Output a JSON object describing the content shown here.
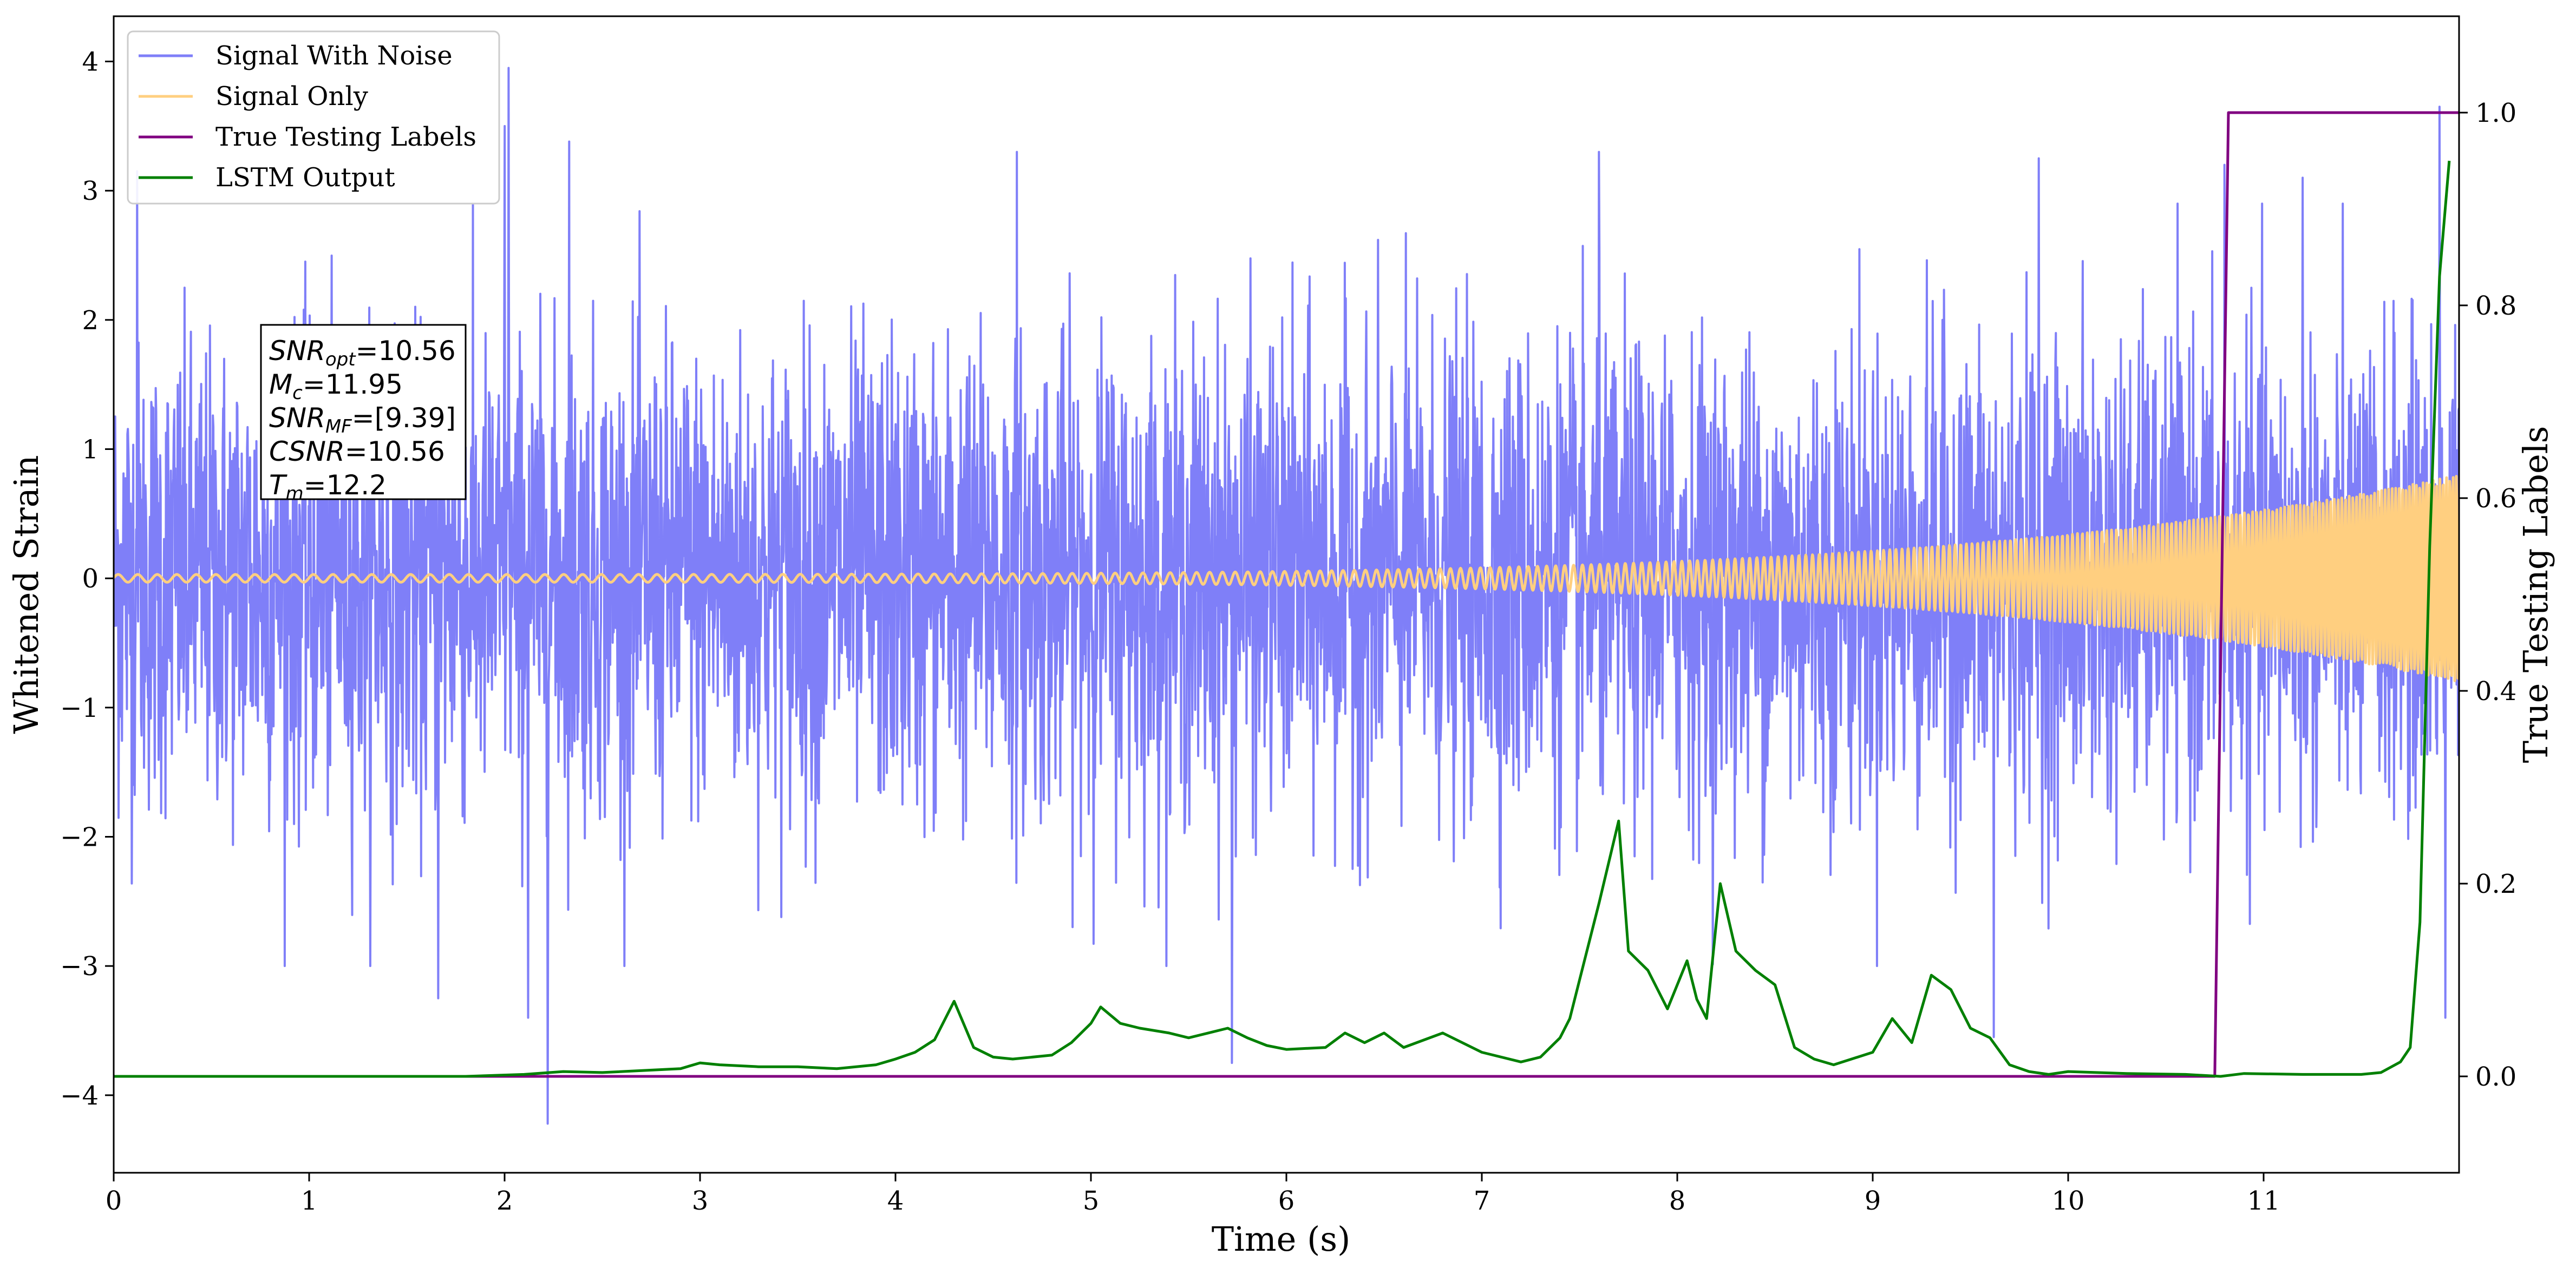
{
  "chart_data": {
    "type": "line",
    "xlabel": "Time (s)",
    "ylabel_left": "Whitened Strain",
    "ylabel_right": "True Testing Labels",
    "xlim": [
      0,
      12
    ],
    "ylim_left": [
      -4.6,
      4.35
    ],
    "ylim_right": [
      -0.1,
      1.1
    ],
    "x_ticks": [
      0,
      1,
      2,
      3,
      4,
      5,
      6,
      7,
      8,
      9,
      10,
      11
    ],
    "y_ticks_left": [
      -4,
      -3,
      -2,
      -1,
      0,
      1,
      2,
      3,
      4
    ],
    "y_ticks_right": [
      0.0,
      0.2,
      0.4,
      0.6,
      0.8,
      1.0
    ],
    "y_tick_labels_left": [
      "−4",
      "−3",
      "−2",
      "−1",
      "0",
      "1",
      "2",
      "3",
      "4"
    ],
    "y_tick_labels_right": [
      "0.0",
      "0.2",
      "0.4",
      "0.6",
      "0.8",
      "1.0"
    ],
    "grid": false,
    "legend_placement": "top-left",
    "series": [
      {
        "name": "Signal With Noise",
        "axis": "left",
        "color": "#7f7ff8",
        "kind": "noise",
        "sigma": 0.9,
        "samples": 4800,
        "spikes": [
          [
            0.12,
            3.15
          ],
          [
            2.0,
            3.5
          ],
          [
            2.02,
            3.95
          ],
          [
            2.22,
            -4.22
          ],
          [
            2.33,
            3.38
          ],
          [
            4.62,
            3.3
          ],
          [
            5.72,
            -3.75
          ],
          [
            7.6,
            3.3
          ],
          [
            9.62,
            -3.55
          ],
          [
            9.85,
            3.25
          ],
          [
            10.8,
            3.2
          ],
          [
            11.2,
            3.1
          ],
          [
            11.9,
            3.65
          ],
          [
            11.93,
            -3.4
          ],
          [
            1.66,
            -3.25
          ],
          [
            2.12,
            -3.4
          ]
        ]
      },
      {
        "name": "Signal Only",
        "axis": "left",
        "color": "#ffcf80",
        "kind": "chirp",
        "amp_start": 0.03,
        "amp_end": 0.8,
        "f_start": 10,
        "f_end": 60
      },
      {
        "name": "True Testing Labels",
        "axis": "right",
        "color": "#800080",
        "x": [
          0,
          10.75,
          10.82,
          12
        ],
        "y": [
          0,
          0,
          1,
          1
        ]
      },
      {
        "name": "LSTM Output",
        "axis": "right",
        "color": "#008000",
        "x": [
          0,
          1.8,
          2.1,
          2.3,
          2.5,
          2.9,
          3.0,
          3.1,
          3.3,
          3.5,
          3.7,
          3.9,
          4.0,
          4.1,
          4.2,
          4.3,
          4.4,
          4.5,
          4.6,
          4.8,
          4.9,
          5.0,
          5.05,
          5.15,
          5.25,
          5.4,
          5.5,
          5.6,
          5.7,
          5.8,
          5.9,
          6.0,
          6.2,
          6.3,
          6.4,
          6.5,
          6.6,
          6.8,
          7.0,
          7.2,
          7.3,
          7.4,
          7.45,
          7.5,
          7.6,
          7.7,
          7.75,
          7.85,
          7.95,
          8.05,
          8.1,
          8.15,
          8.22,
          8.3,
          8.4,
          8.5,
          8.6,
          8.7,
          8.8,
          9.0,
          9.1,
          9.2,
          9.3,
          9.4,
          9.5,
          9.6,
          9.7,
          9.8,
          9.9,
          10.0,
          10.3,
          10.6,
          10.78,
          10.9,
          11.2,
          11.5,
          11.6,
          11.7,
          11.75,
          11.8,
          11.85,
          11.9,
          11.95
        ],
        "y": [
          0.0,
          0.0,
          0.002,
          0.005,
          0.004,
          0.008,
          0.014,
          0.012,
          0.01,
          0.01,
          0.008,
          0.012,
          0.018,
          0.025,
          0.038,
          0.078,
          0.03,
          0.02,
          0.018,
          0.022,
          0.035,
          0.055,
          0.072,
          0.055,
          0.05,
          0.045,
          0.04,
          0.045,
          0.05,
          0.04,
          0.032,
          0.028,
          0.03,
          0.045,
          0.035,
          0.045,
          0.03,
          0.045,
          0.025,
          0.015,
          0.02,
          0.04,
          0.06,
          0.1,
          0.18,
          0.265,
          0.13,
          0.11,
          0.07,
          0.12,
          0.08,
          0.06,
          0.2,
          0.13,
          0.11,
          0.095,
          0.03,
          0.018,
          0.012,
          0.025,
          0.06,
          0.035,
          0.105,
          0.09,
          0.05,
          0.04,
          0.012,
          0.005,
          0.002,
          0.005,
          0.003,
          0.002,
          0.0,
          0.003,
          0.002,
          0.002,
          0.004,
          0.015,
          0.03,
          0.16,
          0.55,
          0.83,
          0.95
        ]
      }
    ]
  },
  "legend": {
    "entries": [
      {
        "label": "Signal With Noise",
        "color": "#7f7ff8"
      },
      {
        "label": "Signal Only",
        "color": "#ffcf80"
      },
      {
        "label": "True Testing Labels",
        "color": "#800080"
      },
      {
        "label": "LSTM Output",
        "color": "#008000"
      }
    ]
  },
  "annotation": {
    "lines": [
      {
        "sym": "SNR",
        "sub": "opt",
        "rest": "=10.56"
      },
      {
        "sym": "M",
        "sub": "c",
        "rest": "=11.95"
      },
      {
        "sym": "SNR",
        "sub": "MF",
        "rest": "=[9.39]"
      },
      {
        "sym": "CSNR",
        "sub": "",
        "rest": "=10.56"
      },
      {
        "sym": "T",
        "sub": "m",
        "rest": "=12.2"
      }
    ]
  }
}
